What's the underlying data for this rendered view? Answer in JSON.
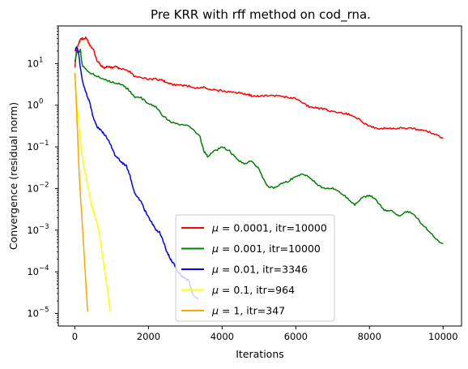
{
  "chart_data": {
    "type": "line",
    "title": "Pre KRR with rff method on cod_rna.",
    "xlabel": "Iterations",
    "ylabel": "Convergence (residual norm)",
    "xlim": [
      -450,
      10500
    ],
    "ylim": [
      5e-06,
      80
    ],
    "yscale": "log",
    "grid": false,
    "legend_position": "lower-center",
    "x_ticks": [
      0,
      2000,
      4000,
      6000,
      8000,
      10000
    ],
    "x_tick_labels": [
      "0",
      "2000",
      "4000",
      "6000",
      "8000",
      "10000"
    ],
    "y_ticks": [
      1e-05,
      0.0001,
      0.001,
      0.01,
      0.1,
      1,
      10
    ],
    "y_tick_labels": [
      {
        "base": "10",
        "exp": "−5"
      },
      {
        "base": "10",
        "exp": "−4"
      },
      {
        "base": "10",
        "exp": "−3"
      },
      {
        "base": "10",
        "exp": "−2"
      },
      {
        "base": "10",
        "exp": "−1"
      },
      {
        "base": "10",
        "exp": "0"
      },
      {
        "base": "10",
        "exp": "1"
      }
    ],
    "series": [
      {
        "name": "μ = 0.0001, itr=10000",
        "legend_mu": "0.0001",
        "legend_itr": ", itr=10000",
        "color": "#ff0000",
        "points": [
          [
            0,
            8
          ],
          [
            40,
            20
          ],
          [
            100,
            30
          ],
          [
            150,
            38
          ],
          [
            200,
            40
          ],
          [
            250,
            38
          ],
          [
            300,
            42
          ],
          [
            350,
            35
          ],
          [
            400,
            28
          ],
          [
            500,
            22
          ],
          [
            600,
            12
          ],
          [
            700,
            9
          ],
          [
            800,
            8
          ],
          [
            900,
            8.5
          ],
          [
            1000,
            8
          ],
          [
            1100,
            8.5
          ],
          [
            1200,
            7.5
          ],
          [
            1400,
            7
          ],
          [
            1500,
            6.5
          ],
          [
            1600,
            5
          ],
          [
            1800,
            4.5
          ],
          [
            2000,
            4.3
          ],
          [
            2200,
            4.2
          ],
          [
            2400,
            3.9
          ],
          [
            2500,
            3.5
          ],
          [
            2600,
            3.2
          ],
          [
            2800,
            3.0
          ],
          [
            3000,
            3.0
          ],
          [
            3200,
            2.7
          ],
          [
            3400,
            2.6
          ],
          [
            3500,
            2.7
          ],
          [
            3600,
            2.4
          ],
          [
            3800,
            2.3
          ],
          [
            4000,
            2.2
          ],
          [
            4200,
            2.1
          ],
          [
            4400,
            2.0
          ],
          [
            4600,
            1.9
          ],
          [
            4700,
            1.8
          ],
          [
            4800,
            1.7
          ],
          [
            5000,
            1.65
          ],
          [
            5200,
            1.7
          ],
          [
            5400,
            1.7
          ],
          [
            5600,
            1.6
          ],
          [
            5800,
            1.55
          ],
          [
            6000,
            1.45
          ],
          [
            6200,
            1.1
          ],
          [
            6400,
            0.9
          ],
          [
            6600,
            0.85
          ],
          [
            6800,
            0.8
          ],
          [
            7000,
            0.7
          ],
          [
            7200,
            0.68
          ],
          [
            7400,
            0.62
          ],
          [
            7600,
            0.55
          ],
          [
            7800,
            0.4
          ],
          [
            8000,
            0.32
          ],
          [
            8200,
            0.27
          ],
          [
            8400,
            0.28
          ],
          [
            8600,
            0.28
          ],
          [
            8800,
            0.28
          ],
          [
            9000,
            0.28
          ],
          [
            9200,
            0.27
          ],
          [
            9400,
            0.25
          ],
          [
            9600,
            0.23
          ],
          [
            9800,
            0.2
          ],
          [
            10000,
            0.16
          ]
        ]
      },
      {
        "name": "μ = 0.001, itr=10000",
        "legend_mu": "0.001",
        "legend_itr": ", itr=10000",
        "color": "#008000",
        "points": [
          [
            0,
            11
          ],
          [
            30,
            15
          ],
          [
            60,
            20
          ],
          [
            100,
            18
          ],
          [
            150,
            22
          ],
          [
            200,
            9
          ],
          [
            300,
            7
          ],
          [
            500,
            5.5
          ],
          [
            700,
            4.5
          ],
          [
            900,
            3.8
          ],
          [
            1100,
            3.5
          ],
          [
            1300,
            3
          ],
          [
            1500,
            2.2
          ],
          [
            1600,
            1.6
          ],
          [
            1800,
            1.5
          ],
          [
            2000,
            1.1
          ],
          [
            2200,
            0.9
          ],
          [
            2400,
            0.55
          ],
          [
            2600,
            0.4
          ],
          [
            2800,
            0.35
          ],
          [
            3000,
            0.33
          ],
          [
            3200,
            0.28
          ],
          [
            3400,
            0.17
          ],
          [
            3500,
            0.08
          ],
          [
            3600,
            0.06
          ],
          [
            3800,
            0.08
          ],
          [
            4000,
            0.1
          ],
          [
            4200,
            0.08
          ],
          [
            4400,
            0.05
          ],
          [
            4600,
            0.04
          ],
          [
            4800,
            0.045
          ],
          [
            5000,
            0.03
          ],
          [
            5200,
            0.012
          ],
          [
            5400,
            0.01
          ],
          [
            5600,
            0.013
          ],
          [
            5800,
            0.015
          ],
          [
            6000,
            0.02
          ],
          [
            6200,
            0.022
          ],
          [
            6400,
            0.018
          ],
          [
            6600,
            0.012
          ],
          [
            6800,
            0.01
          ],
          [
            7000,
            0.01
          ],
          [
            7200,
            0.008
          ],
          [
            7400,
            0.006
          ],
          [
            7600,
            0.004
          ],
          [
            7800,
            0.006
          ],
          [
            8000,
            0.007
          ],
          [
            8200,
            0.005
          ],
          [
            8400,
            0.003
          ],
          [
            8600,
            0.003
          ],
          [
            8800,
            0.0022
          ],
          [
            9000,
            0.0028
          ],
          [
            9200,
            0.0025
          ],
          [
            9400,
            0.0015
          ],
          [
            9600,
            0.001
          ],
          [
            9800,
            0.0006
          ],
          [
            10000,
            0.00048
          ]
        ]
      },
      {
        "name": "μ = 0.01, itr=3346",
        "legend_mu": "0.01",
        "legend_itr": ", itr=3346",
        "color": "#0000ff",
        "points": [
          [
            0,
            20
          ],
          [
            50,
            25
          ],
          [
            100,
            18
          ],
          [
            150,
            8
          ],
          [
            200,
            4
          ],
          [
            300,
            2
          ],
          [
            400,
            1.2
          ],
          [
            500,
            0.5
          ],
          [
            600,
            0.3
          ],
          [
            700,
            0.25
          ],
          [
            800,
            0.2
          ],
          [
            900,
            0.15
          ],
          [
            1000,
            0.1
          ],
          [
            1100,
            0.06
          ],
          [
            1200,
            0.05
          ],
          [
            1300,
            0.04
          ],
          [
            1400,
            0.035
          ],
          [
            1500,
            0.02
          ],
          [
            1600,
            0.009
          ],
          [
            1700,
            0.006
          ],
          [
            1800,
            0.005
          ],
          [
            1900,
            0.003
          ],
          [
            2000,
            0.002
          ],
          [
            2100,
            0.0015
          ],
          [
            2200,
            0.001
          ],
          [
            2300,
            0.0009
          ],
          [
            2400,
            0.00055
          ],
          [
            2500,
            0.0003
          ],
          [
            2600,
            0.0002
          ],
          [
            2700,
            0.00015
          ],
          [
            2800,
            0.0001
          ],
          [
            2900,
            8e-05
          ],
          [
            3000,
            7e-05
          ],
          [
            3100,
            6e-05
          ],
          [
            3200,
            3e-05
          ],
          [
            3346,
            2.2e-05
          ]
        ]
      },
      {
        "name": "μ = 0.1, itr=964",
        "legend_mu": "0.1",
        "legend_itr": ", itr=964",
        "color": "#ffff00",
        "points": [
          [
            0,
            3.5
          ],
          [
            30,
            2
          ],
          [
            60,
            1
          ],
          [
            100,
            0.4
          ],
          [
            150,
            0.15
          ],
          [
            200,
            0.06
          ],
          [
            250,
            0.03
          ],
          [
            300,
            0.02
          ],
          [
            350,
            0.012
          ],
          [
            400,
            0.007
          ],
          [
            450,
            0.004
          ],
          [
            500,
            0.003
          ],
          [
            550,
            0.002
          ],
          [
            600,
            0.0015
          ],
          [
            650,
            0.001
          ],
          [
            700,
            0.0005
          ],
          [
            750,
            0.00025
          ],
          [
            800,
            0.00012
          ],
          [
            850,
            6e-05
          ],
          [
            900,
            3e-05
          ],
          [
            964,
            1.1e-05
          ]
        ]
      },
      {
        "name": "μ = 1, itr=347",
        "legend_mu": "1",
        "legend_itr": ", itr=347",
        "color": "#ffa500",
        "points": [
          [
            0,
            6
          ],
          [
            20,
            3
          ],
          [
            40,
            1
          ],
          [
            60,
            0.4
          ],
          [
            80,
            0.15
          ],
          [
            100,
            0.05
          ],
          [
            120,
            0.02
          ],
          [
            140,
            0.01
          ],
          [
            160,
            0.005
          ],
          [
            180,
            0.003
          ],
          [
            200,
            0.0015
          ],
          [
            220,
            0.0008
          ],
          [
            240,
            0.0004
          ],
          [
            260,
            0.0002
          ],
          [
            280,
            0.0001
          ],
          [
            300,
            5e-05
          ],
          [
            320,
            2.5e-05
          ],
          [
            347,
            1.1e-05
          ]
        ]
      }
    ]
  }
}
